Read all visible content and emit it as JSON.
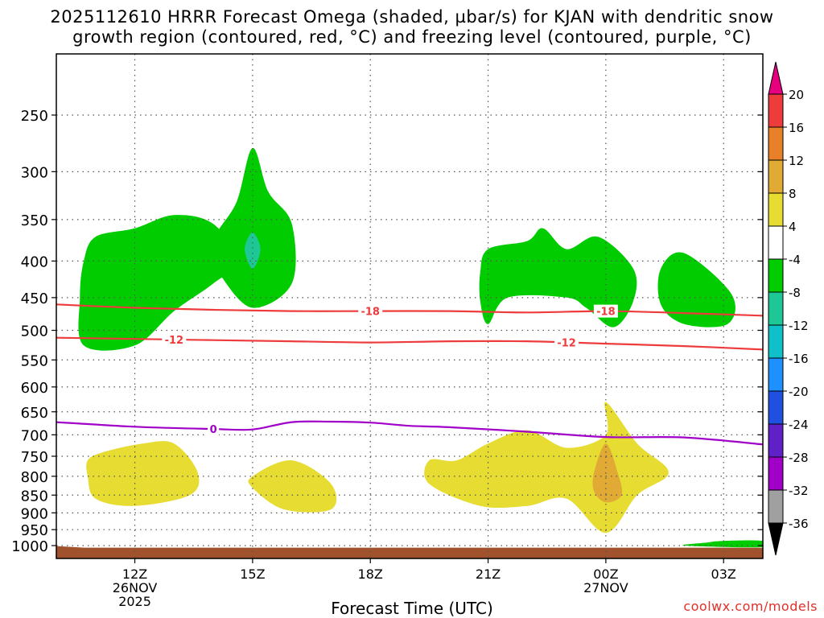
{
  "title_line1": "2025112610 HRRR Forecast Omega (shaded, µbar/s) for KJAN with dendritic snow",
  "title_line2": "growth region (contoured, red, °C) and freezing level (contoured, purple, °C)",
  "xlabel": "Forecast Time (UTC)",
  "credit": "coolwx.com/models",
  "chart_data": {
    "type": "heatmap",
    "x_axis": {
      "label": "Forecast Time (UTC)",
      "ticks": [
        {
          "hour": 12,
          "label": "12Z",
          "sub1": "26NOV",
          "sub2": "2025"
        },
        {
          "hour": 15,
          "label": "15Z",
          "sub1": "",
          "sub2": ""
        },
        {
          "hour": 18,
          "label": "18Z",
          "sub1": "",
          "sub2": ""
        },
        {
          "hour": 21,
          "label": "21Z",
          "sub1": "",
          "sub2": ""
        },
        {
          "hour": 24,
          "label": "00Z",
          "sub1": "27NOV",
          "sub2": ""
        },
        {
          "hour": 27,
          "label": "03Z",
          "sub1": "",
          "sub2": ""
        }
      ],
      "range_hours": [
        10,
        28
      ]
    },
    "y_axis": {
      "scale": "pressure (inverted)",
      "range_hpa": [
        200,
        1050
      ],
      "ticks": [
        "250",
        "300",
        "350",
        "400",
        "450",
        "500",
        "550",
        "600",
        "650",
        "700",
        "750",
        "800",
        "850",
        "900",
        "950",
        "1000"
      ]
    },
    "grid": true,
    "colorbar": {
      "labels": [
        "20",
        "16",
        "12",
        "8",
        "4",
        "-4",
        "-8",
        "-12",
        "-16",
        "-20",
        "-24",
        "-28",
        "-32",
        "-36"
      ],
      "bins": [
        {
          "range": "> 20",
          "color": "#e6007e"
        },
        {
          "range": "16 to 20",
          "color": "#ee3b3b"
        },
        {
          "range": "12 to 16",
          "color": "#e8802a"
        },
        {
          "range": "8 to 12",
          "color": "#e0aa35"
        },
        {
          "range": "4 to 8",
          "color": "#e6dc32"
        },
        {
          "range": "-4 to 4",
          "color": "#ffffff"
        },
        {
          "range": "-8 to -4",
          "color": "#00cc00"
        },
        {
          "range": "-12 to -8",
          "color": "#1ec896"
        },
        {
          "range": "-16 to -12",
          "color": "#10c0c8"
        },
        {
          "range": "-20 to -16",
          "color": "#1e90ff"
        },
        {
          "range": "-24 to -20",
          "color": "#2050e0"
        },
        {
          "range": "-28 to -24",
          "color": "#6020c8"
        },
        {
          "range": "-32 to -28",
          "color": "#a000c8"
        },
        {
          "range": "-36 to -32",
          "color": "#a0a0a0"
        },
        {
          "range": "< -36",
          "color": "#000000"
        }
      ]
    },
    "omega_regions": [
      {
        "name": "upward-motion-morning",
        "bin": "-8 to -4",
        "color": "#00cc00",
        "polygon": [
          [
            10.7,
            525
          ],
          [
            10.6,
            450
          ],
          [
            10.7,
            400
          ],
          [
            11.0,
            370
          ],
          [
            12.0,
            360
          ],
          [
            13.0,
            345
          ],
          [
            14.0,
            355
          ],
          [
            14.6,
            400
          ],
          [
            14.0,
            430
          ],
          [
            13.0,
            470
          ],
          [
            12.0,
            525
          ],
          [
            10.7,
            525
          ]
        ]
      },
      {
        "name": "upward-motion-15z",
        "bin": "-8 to -4",
        "color": "#00cc00",
        "polygon": [
          [
            14.1,
            365
          ],
          [
            14.6,
            330
          ],
          [
            15.0,
            278
          ],
          [
            15.4,
            320
          ],
          [
            16.0,
            355
          ],
          [
            16.0,
            430
          ],
          [
            15.0,
            465
          ],
          [
            14.2,
            420
          ],
          [
            14.0,
            390
          ],
          [
            14.1,
            365
          ]
        ]
      },
      {
        "name": "upward-motion-15z-core",
        "bin": "-12 to -8",
        "color": "#1ec896",
        "polygon": [
          [
            14.8,
            385
          ],
          [
            15.0,
            365
          ],
          [
            15.2,
            385
          ],
          [
            15.0,
            410
          ],
          [
            14.8,
            385
          ]
        ]
      },
      {
        "name": "upward-motion-21z",
        "bin": "-8 to -4",
        "color": "#00cc00",
        "polygon": [
          [
            20.8,
            415
          ],
          [
            21.0,
            385
          ],
          [
            22.0,
            375
          ],
          [
            22.4,
            360
          ],
          [
            23.0,
            385
          ],
          [
            23.8,
            370
          ],
          [
            24.7,
            410
          ],
          [
            24.7,
            455
          ],
          [
            24.2,
            495
          ],
          [
            23.5,
            465
          ],
          [
            23.0,
            450
          ],
          [
            21.5,
            450
          ],
          [
            21.0,
            490
          ],
          [
            20.8,
            455
          ],
          [
            20.8,
            415
          ]
        ]
      },
      {
        "name": "upward-motion-02z",
        "bin": "-8 to -4",
        "color": "#00cc00",
        "polygon": [
          [
            25.4,
            410
          ],
          [
            26.0,
            390
          ],
          [
            27.2,
            445
          ],
          [
            27.1,
            490
          ],
          [
            26.0,
            490
          ],
          [
            25.4,
            460
          ],
          [
            25.4,
            410
          ]
        ]
      },
      {
        "name": "upward-motion-near-surface",
        "bin": "-8 to -4",
        "color": "#00cc00",
        "polygon": [
          [
            26.0,
            1000
          ],
          [
            26.6,
            990
          ],
          [
            27.0,
            985
          ],
          [
            28.0,
            985
          ],
          [
            28.0,
            1005
          ],
          [
            26.0,
            1000
          ]
        ]
      },
      {
        "name": "downward-motion-morning",
        "bin": "4 to 8",
        "color": "#e6dc32",
        "polygon": [
          [
            10.8,
            760
          ],
          [
            11.2,
            740
          ],
          [
            12.2,
            720
          ],
          [
            13.0,
            720
          ],
          [
            13.6,
            790
          ],
          [
            13.4,
            850
          ],
          [
            12.0,
            880
          ],
          [
            11.0,
            860
          ],
          [
            10.8,
            800
          ],
          [
            10.8,
            760
          ]
        ]
      },
      {
        "name": "downward-motion-16z",
        "bin": "4 to 8",
        "color": "#e6dc32",
        "polygon": [
          [
            15.0,
            800
          ],
          [
            16.0,
            760
          ],
          [
            17.0,
            820
          ],
          [
            17.0,
            890
          ],
          [
            15.8,
            890
          ],
          [
            15.0,
            830
          ],
          [
            15.0,
            800
          ]
        ]
      },
      {
        "name": "downward-motion-evening",
        "bin": "4 to 8",
        "color": "#e6dc32",
        "polygon": [
          [
            19.5,
            760
          ],
          [
            20.2,
            760
          ],
          [
            21.0,
            720
          ],
          [
            22.0,
            690
          ],
          [
            23.0,
            730
          ],
          [
            24.0,
            700
          ],
          [
            24.0,
            630
          ],
          [
            24.8,
            720
          ],
          [
            25.6,
            790
          ],
          [
            24.8,
            850
          ],
          [
            24.0,
            960
          ],
          [
            23.0,
            860
          ],
          [
            22.0,
            880
          ],
          [
            20.8,
            880
          ],
          [
            19.5,
            820
          ],
          [
            19.5,
            760
          ]
        ]
      },
      {
        "name": "downward-motion-00z-core",
        "bin": "8 to 12",
        "color": "#e0aa35",
        "polygon": [
          [
            23.7,
            790
          ],
          [
            24.0,
            720
          ],
          [
            24.3,
            790
          ],
          [
            24.4,
            850
          ],
          [
            24.0,
            870
          ],
          [
            23.7,
            840
          ],
          [
            23.7,
            790
          ]
        ]
      }
    ],
    "temperature_contours": [
      {
        "label": "-18",
        "color": "#ee3b3b",
        "label_at": [
          18.0,
          -1
        ],
        "label_at_2": [
          24.0,
          -1
        ],
        "points": [
          [
            10,
            460
          ],
          [
            12,
            465
          ],
          [
            14,
            468
          ],
          [
            16,
            470
          ],
          [
            18,
            470
          ],
          [
            20,
            470
          ],
          [
            22,
            472
          ],
          [
            24,
            470
          ],
          [
            26,
            473
          ],
          [
            28,
            477
          ]
        ]
      },
      {
        "label": "-12",
        "color": "#ee3b3b",
        "label_at": [
          13.0,
          -1
        ],
        "label_at_2": [
          23.0,
          -1
        ],
        "points": [
          [
            10,
            512
          ],
          [
            12,
            514
          ],
          [
            14,
            516
          ],
          [
            16,
            518
          ],
          [
            18,
            520
          ],
          [
            20,
            518
          ],
          [
            22,
            518
          ],
          [
            24,
            522
          ],
          [
            26,
            526
          ],
          [
            28,
            532
          ]
        ]
      },
      {
        "label": "0",
        "color": "#a000c8",
        "label_at": [
          14.0,
          -1
        ],
        "label_at_2": null,
        "points": [
          [
            10,
            672
          ],
          [
            12,
            682
          ],
          [
            14,
            687
          ],
          [
            15,
            688
          ],
          [
            16,
            672
          ],
          [
            17,
            671
          ],
          [
            18,
            673
          ],
          [
            19,
            680
          ],
          [
            20,
            683
          ],
          [
            22,
            693
          ],
          [
            24,
            705
          ],
          [
            26,
            706
          ],
          [
            28,
            722
          ]
        ]
      }
    ],
    "terrain": {
      "color": "#a0522d",
      "surface_hpa": 1012
    }
  }
}
